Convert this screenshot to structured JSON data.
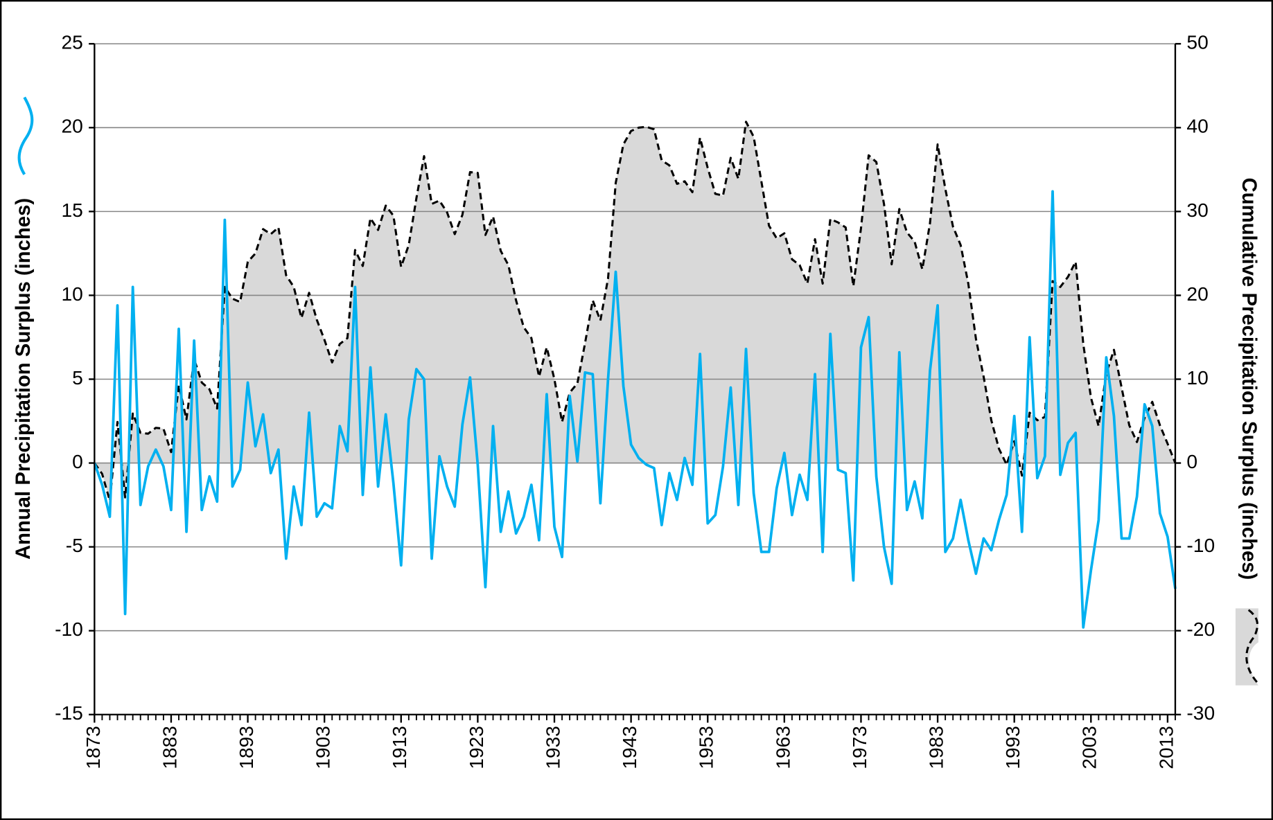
{
  "chart_data": {
    "type": "line",
    "grid": true,
    "x": [
      1873,
      1874,
      1875,
      1876,
      1877,
      1878,
      1879,
      1880,
      1881,
      1882,
      1883,
      1884,
      1885,
      1886,
      1887,
      1888,
      1889,
      1890,
      1891,
      1892,
      1893,
      1894,
      1895,
      1896,
      1897,
      1898,
      1899,
      1900,
      1901,
      1902,
      1903,
      1904,
      1905,
      1906,
      1907,
      1908,
      1909,
      1910,
      1911,
      1912,
      1913,
      1914,
      1915,
      1916,
      1917,
      1918,
      1919,
      1920,
      1921,
      1922,
      1923,
      1924,
      1925,
      1926,
      1927,
      1928,
      1929,
      1930,
      1931,
      1932,
      1933,
      1934,
      1935,
      1936,
      1937,
      1938,
      1939,
      1940,
      1941,
      1942,
      1943,
      1944,
      1945,
      1946,
      1947,
      1948,
      1949,
      1950,
      1951,
      1952,
      1953,
      1954,
      1955,
      1956,
      1957,
      1958,
      1959,
      1960,
      1961,
      1962,
      1963,
      1964,
      1965,
      1966,
      1967,
      1968,
      1969,
      1970,
      1971,
      1972,
      1973,
      1974,
      1975,
      1976,
      1977,
      1978,
      1979,
      1980,
      1981,
      1982,
      1983,
      1984,
      1985,
      1986,
      1987,
      1988,
      1989,
      1990,
      1991,
      1992,
      1993,
      1994,
      1995,
      1996,
      1997,
      1998,
      1999,
      2000,
      2001,
      2002,
      2003,
      2004,
      2005,
      2006,
      2007,
      2008,
      2009,
      2010,
      2011,
      2012,
      2013,
      2014
    ],
    "xlim": [
      1873,
      2014
    ],
    "xticks": [
      1873,
      1883,
      1893,
      1903,
      1913,
      1923,
      1933,
      1943,
      1953,
      1963,
      1973,
      1983,
      1993,
      2003,
      2013
    ],
    "ylim": [
      -15,
      25
    ],
    "yticks": [
      -15,
      -10,
      -5,
      0,
      5,
      10,
      15,
      20,
      25
    ],
    "y2lim": [
      -30,
      50
    ],
    "y2ticks": [
      -30,
      -20,
      -10,
      0,
      10,
      20,
      30,
      40,
      50
    ],
    "series": [
      {
        "name": "Annual Precipitation Surplus (inches)",
        "color": "#00b0f0",
        "values": [
          0,
          -1.3,
          -3.2,
          9.4,
          -9.0,
          10.5,
          -2.5,
          -0.2,
          0.8,
          -0.2,
          -2.8,
          8.0,
          -4.1,
          7.3,
          -2.8,
          -0.8,
          -2.3,
          14.5,
          -1.4,
          -0.4,
          4.8,
          1.0,
          2.9,
          -0.6,
          0.8,
          -5.7,
          -1.4,
          -3.7,
          3.0,
          -3.2,
          -2.4,
          -2.7,
          2.2,
          0.7,
          10.5,
          -1.9,
          5.7,
          -1.4,
          2.9,
          -1.2,
          -6.1,
          2.6,
          5.6,
          5.0,
          -5.7,
          0.4,
          -1.4,
          -2.6,
          2.3,
          5.1,
          -0.1,
          -7.4,
          2.2,
          -4.1,
          -1.7,
          -4.2,
          -3.2,
          -1.3,
          -4.6,
          4.1,
          -3.8,
          -5.6,
          4.0,
          0.1,
          5.4,
          5.3,
          -2.4,
          5.0,
          11.4,
          4.6,
          1.1,
          0.3,
          -0.1,
          -0.3,
          -3.7,
          -0.6,
          -2.2,
          0.3,
          -1.3,
          6.5,
          -3.6,
          -3.1,
          -0.2,
          4.5,
          -2.5,
          6.8,
          -1.8,
          -5.3,
          -5.3,
          -1.5,
          0.6,
          -3.1,
          -0.7,
          -2.2,
          5.3,
          -5.3,
          7.7,
          -0.4,
          -0.6,
          -7.0,
          6.9,
          8.7,
          -0.8,
          -5.0,
          -7.2,
          6.6,
          -2.8,
          -1.1,
          -3.3,
          5.5,
          9.4,
          -5.3,
          -4.5,
          -2.2,
          -4.6,
          -6.6,
          -4.5,
          -5.2,
          -3.4,
          -1.9,
          2.8,
          -4.1,
          7.5,
          -0.9,
          0.4,
          16.2,
          -0.7,
          1.2,
          1.8,
          -9.8,
          -6.4,
          -3.4,
          6.3,
          2.8,
          -4.5,
          -4.5,
          -2.0,
          3.5,
          2.2,
          -3.0,
          -4.4,
          -7.5
        ]
      },
      {
        "name": "Cumulative Precipitation Surplus (inches)",
        "color": "#000000",
        "fill_color": "#d9d9d9",
        "dashed": true,
        "axis": "y2",
        "values": [
          0,
          -1.3,
          -4.5,
          4.9,
          -4.1,
          5.9,
          3.6,
          3.5,
          4.2,
          4.1,
          1.3,
          9.3,
          5.2,
          12.4,
          9.6,
          8.8,
          6.5,
          21.0,
          19.6,
          19.2,
          24.0,
          25.0,
          27.9,
          27.3,
          28.1,
          22.4,
          21.0,
          17.3,
          20.3,
          17.1,
          14.7,
          12.0,
          14.2,
          14.9,
          25.4,
          23.5,
          29.2,
          27.8,
          30.7,
          29.5,
          23.4,
          26.0,
          31.6,
          36.6,
          30.9,
          31.3,
          29.9,
          27.3,
          29.6,
          34.7,
          34.6,
          27.2,
          29.4,
          25.3,
          23.6,
          19.4,
          16.2,
          14.9,
          10.3,
          13.8,
          10.0,
          4.9,
          8.4,
          9.5,
          14.3,
          19.4,
          17.0,
          22.0,
          33.4,
          38.0,
          39.6,
          40.0,
          40.1,
          39.8,
          36.1,
          35.5,
          33.3,
          33.6,
          32.3,
          38.8,
          35.2,
          32.1,
          31.9,
          36.4,
          33.9,
          40.7,
          38.9,
          33.6,
          28.3,
          26.8,
          27.4,
          24.3,
          23.6,
          21.4,
          26.7,
          21.4,
          29.1,
          28.7,
          28.1,
          21.1,
          28.0,
          36.7,
          35.9,
          30.9,
          23.7,
          30.3,
          27.5,
          26.4,
          23.1,
          28.6,
          38.0,
          32.7,
          28.2,
          26.0,
          21.4,
          14.8,
          10.3,
          5.1,
          1.7,
          -0.2,
          2.6,
          -1.5,
          6.0,
          5.1,
          5.5,
          21.7,
          21.0,
          22.2,
          24.0,
          14.2,
          7.8,
          4.4,
          10.7,
          13.5,
          9.0,
          4.5,
          2.5,
          5.4,
          7.3,
          4.5,
          2.3,
          0
        ]
      }
    ]
  }
}
